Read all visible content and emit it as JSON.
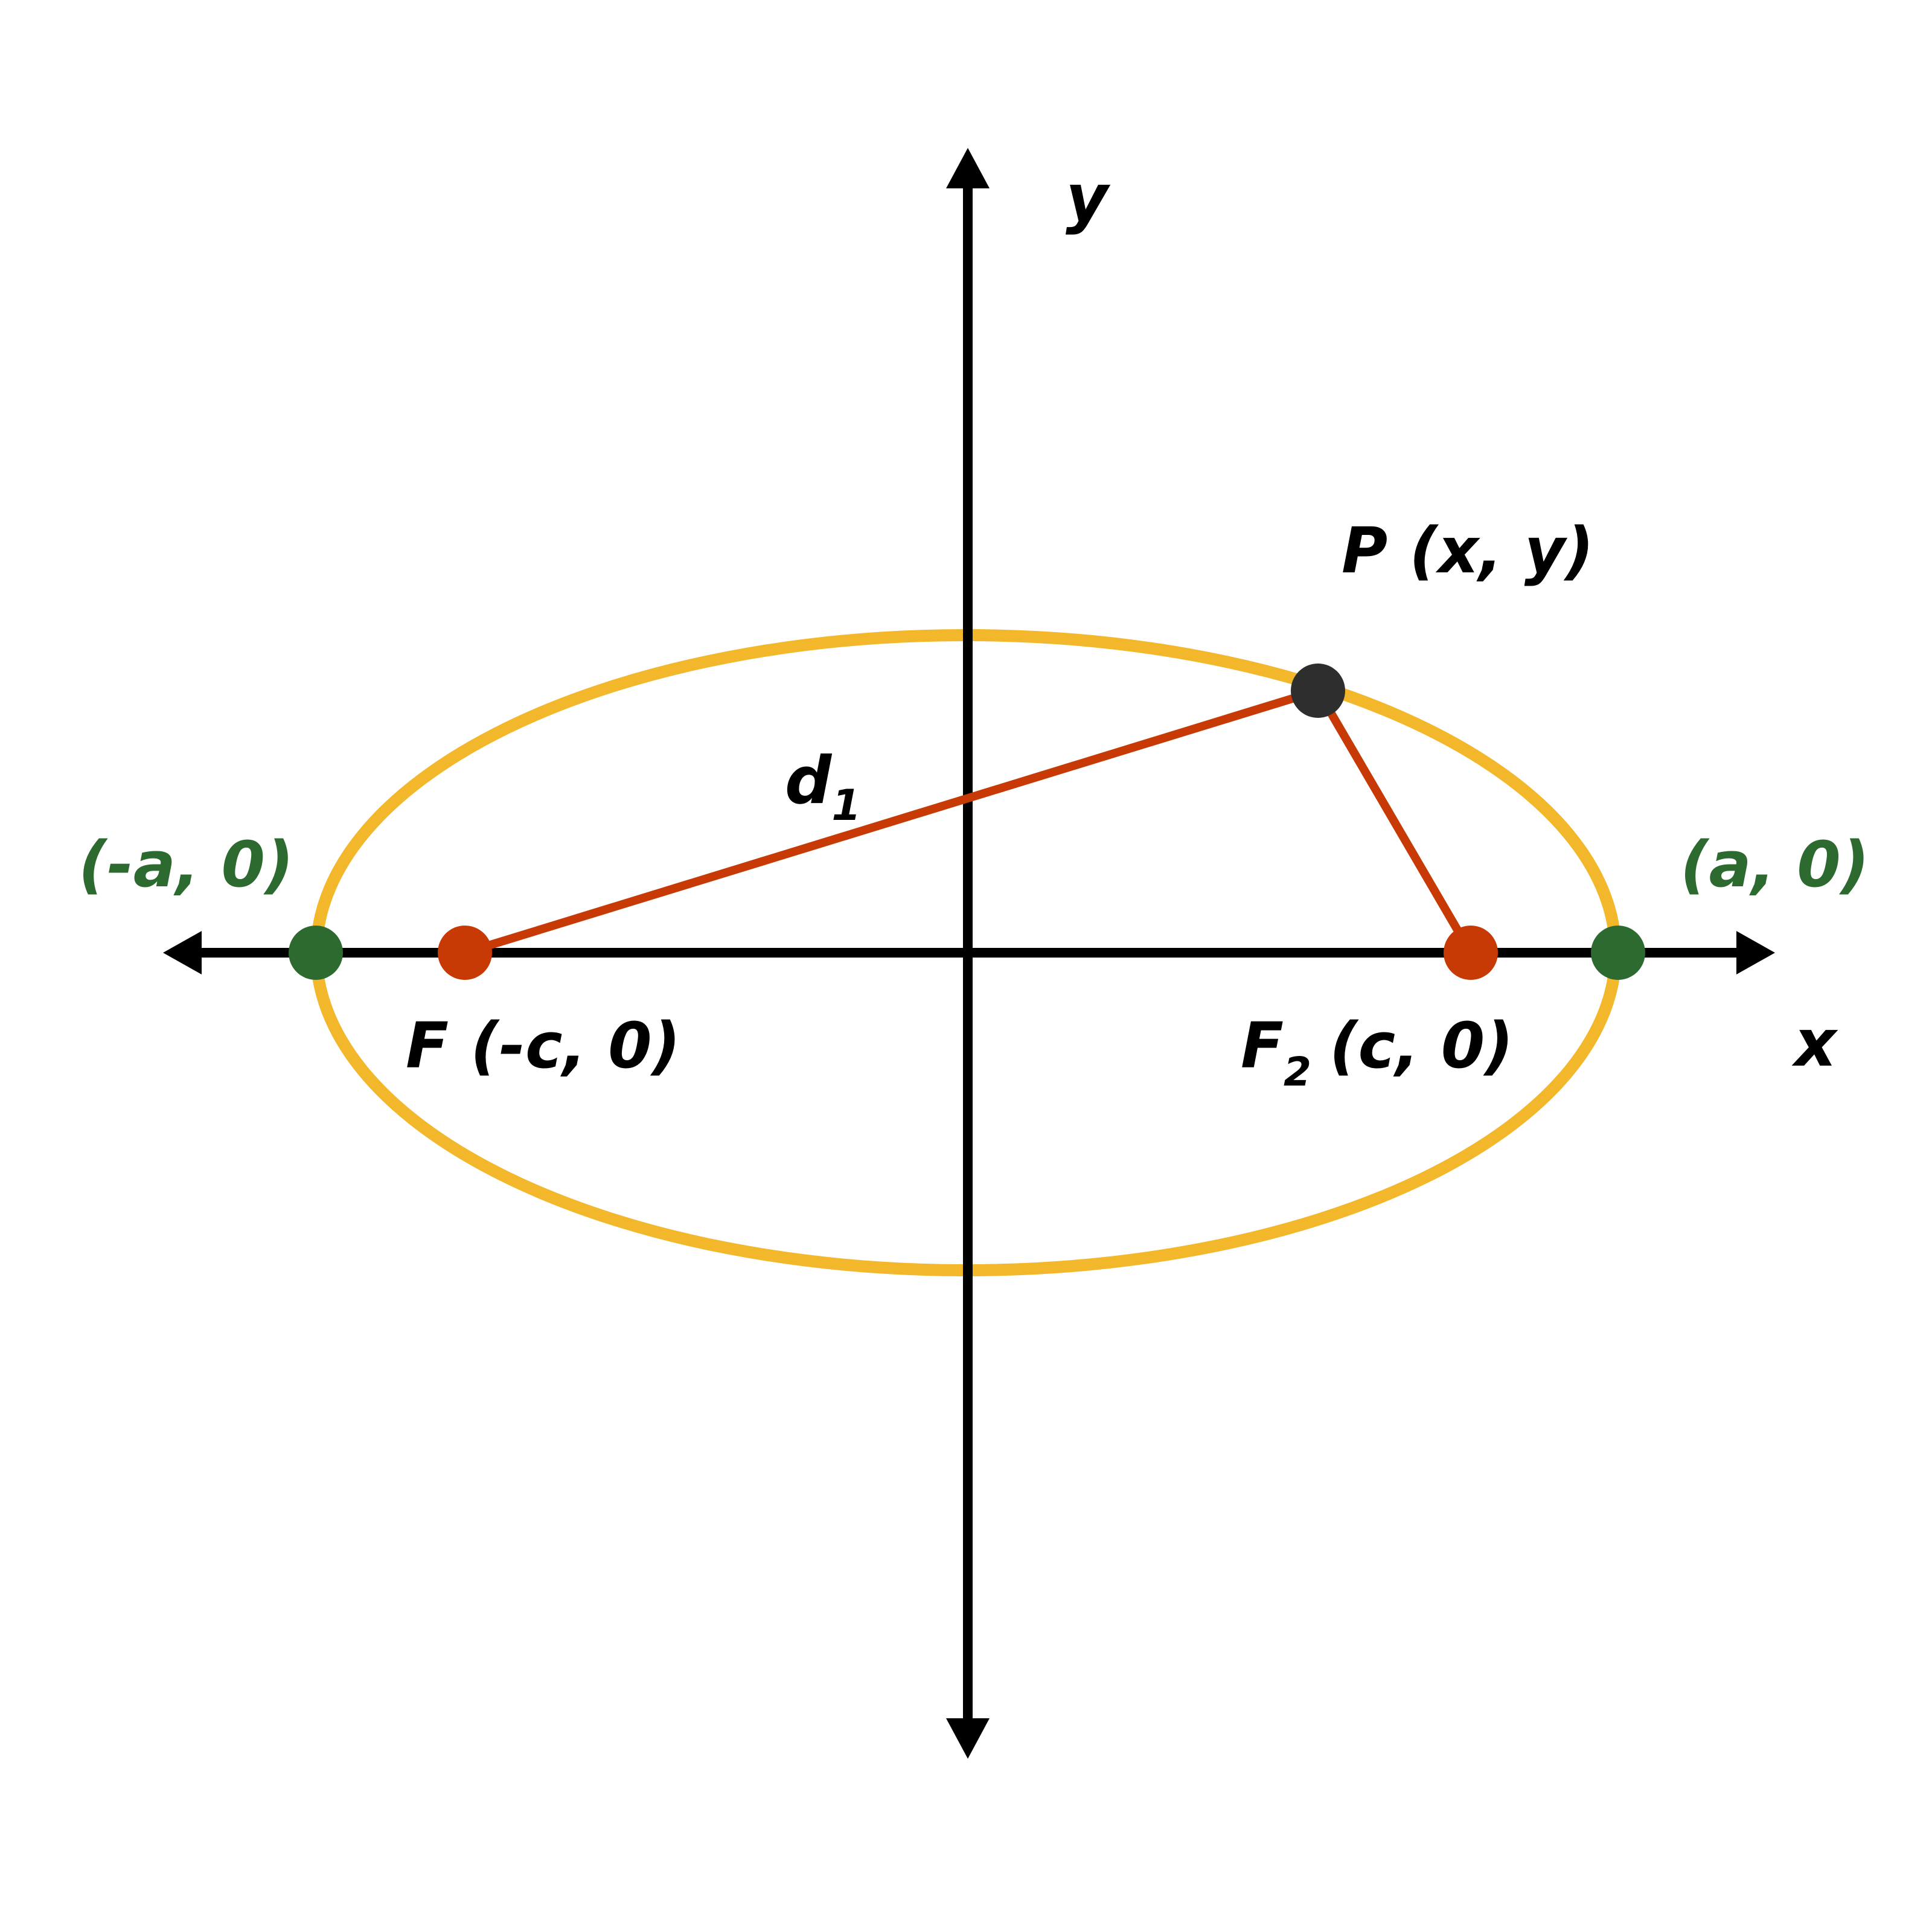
{
  "axes": {
    "x_label": "x",
    "y_label": "y"
  },
  "labels": {
    "left_vertex": "(-a, 0)",
    "right_vertex": "(a, 0)",
    "focus_left": "F (-c, 0)",
    "focus_right_letter": "F",
    "focus_right_subscript": "2",
    "focus_right_coords": "(c, 0)",
    "point_p": "P (x, y)",
    "distance_letter": "d",
    "distance_subscript": "1"
  },
  "colors": {
    "ellipse": "#f3b72b",
    "axis": "#000000",
    "segment": "#c83a05",
    "focus_point": "#c83a05",
    "vertex_point": "#2d6a30",
    "point_p": "#2e2e2e",
    "vertex_label": "#2d6a30"
  }
}
